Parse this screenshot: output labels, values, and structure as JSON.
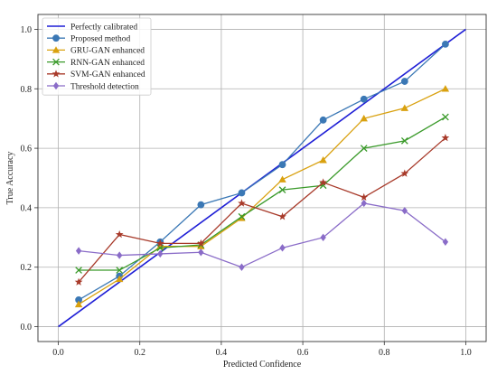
{
  "chart_data": {
    "type": "line",
    "title": "",
    "xlabel": "Predicted Confidence",
    "ylabel": "True Accuracy",
    "xlim": [
      -0.05,
      1.05
    ],
    "ylim": [
      -0.05,
      1.05
    ],
    "xticks": [
      "0.0",
      "0.2",
      "0.4",
      "0.6",
      "0.8",
      "1.0"
    ],
    "yticks": [
      "0.0",
      "0.2",
      "0.4",
      "0.6",
      "0.8",
      "1.0"
    ],
    "grid": true,
    "legend_position": "top-left",
    "x": [
      0.05,
      0.15,
      0.25,
      0.35,
      0.45,
      0.55,
      0.65,
      0.75,
      0.85,
      0.95
    ],
    "reference_line": {
      "name": "Perfectly calibrated",
      "x": [
        0.0,
        1.0
      ],
      "y": [
        0.0,
        1.0
      ],
      "color": "#1f1fd6"
    },
    "series": [
      {
        "name": "Proposed method",
        "color": "#3b78b5",
        "marker": "circle",
        "values": [
          0.09,
          0.17,
          0.285,
          0.41,
          0.45,
          0.545,
          0.695,
          0.765,
          0.825,
          0.95
        ]
      },
      {
        "name": "GRU-GAN enhanced",
        "color": "#d9a10f",
        "marker": "triangle",
        "values": [
          0.075,
          0.16,
          0.27,
          0.27,
          0.365,
          0.495,
          0.56,
          0.7,
          0.735,
          0.8
        ]
      },
      {
        "name": "RNN-GAN enhanced",
        "color": "#3a9a2a",
        "marker": "x",
        "values": [
          0.19,
          0.19,
          0.265,
          0.275,
          0.37,
          0.46,
          0.475,
          0.6,
          0.625,
          0.705
        ]
      },
      {
        "name": "SVM-GAN enhanced",
        "color": "#a83a2a",
        "marker": "star",
        "values": [
          0.15,
          0.31,
          0.28,
          0.28,
          0.415,
          0.37,
          0.485,
          0.435,
          0.515,
          0.635
        ]
      },
      {
        "name": "Threshold detection",
        "color": "#8a6cc8",
        "marker": "diamond",
        "values": [
          0.255,
          0.24,
          0.245,
          0.25,
          0.2,
          0.265,
          0.3,
          0.415,
          0.39,
          0.285
        ]
      }
    ]
  }
}
